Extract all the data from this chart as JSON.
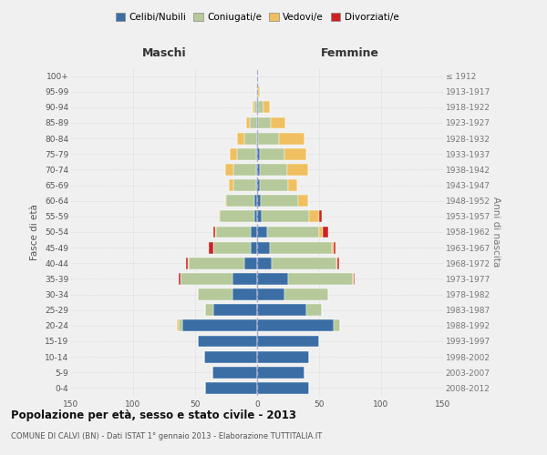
{
  "age_groups": [
    "0-4",
    "5-9",
    "10-14",
    "15-19",
    "20-24",
    "25-29",
    "30-34",
    "35-39",
    "40-44",
    "45-49",
    "50-54",
    "55-59",
    "60-64",
    "65-69",
    "70-74",
    "75-79",
    "80-84",
    "85-89",
    "90-94",
    "95-99",
    "100+"
  ],
  "birth_years": [
    "2008-2012",
    "2003-2007",
    "1998-2002",
    "1993-1997",
    "1988-1992",
    "1983-1987",
    "1978-1982",
    "1973-1977",
    "1968-1972",
    "1963-1967",
    "1958-1962",
    "1953-1957",
    "1948-1952",
    "1943-1947",
    "1938-1942",
    "1933-1937",
    "1928-1932",
    "1923-1927",
    "1918-1922",
    "1913-1917",
    "≤ 1912"
  ],
  "colors": {
    "celibi": "#3a6ea5",
    "coniugati": "#b5c99a",
    "vedovi": "#f0c060",
    "divorziati": "#cc2222"
  },
  "maschi": {
    "celibi": [
      42,
      36,
      43,
      48,
      60,
      35,
      20,
      20,
      10,
      5,
      5,
      2,
      2,
      1,
      1,
      1,
      0,
      0,
      0,
      0,
      0
    ],
    "coniugati": [
      0,
      0,
      0,
      0,
      3,
      7,
      28,
      42,
      45,
      30,
      28,
      28,
      23,
      18,
      18,
      15,
      10,
      6,
      2,
      1,
      0
    ],
    "vedovi": [
      0,
      0,
      0,
      0,
      2,
      0,
      0,
      0,
      1,
      0,
      1,
      1,
      1,
      4,
      7,
      6,
      6,
      3,
      2,
      0,
      0
    ],
    "divorziati": [
      0,
      0,
      0,
      0,
      0,
      0,
      0,
      1,
      1,
      4,
      1,
      0,
      0,
      0,
      0,
      0,
      0,
      0,
      0,
      0,
      0
    ]
  },
  "femmine": {
    "celibi": [
      42,
      38,
      42,
      50,
      62,
      40,
      22,
      25,
      12,
      10,
      8,
      4,
      3,
      2,
      2,
      2,
      1,
      1,
      1,
      0,
      0
    ],
    "coniugati": [
      0,
      0,
      0,
      0,
      5,
      12,
      35,
      52,
      52,
      50,
      42,
      38,
      30,
      23,
      22,
      20,
      17,
      10,
      4,
      1,
      1
    ],
    "vedovi": [
      0,
      0,
      0,
      0,
      0,
      0,
      0,
      1,
      1,
      2,
      3,
      8,
      8,
      7,
      17,
      18,
      20,
      12,
      5,
      1,
      0
    ],
    "divorziati": [
      0,
      0,
      0,
      0,
      0,
      0,
      0,
      1,
      1,
      1,
      4,
      2,
      0,
      0,
      0,
      0,
      0,
      0,
      0,
      0,
      0
    ]
  },
  "title": "Popolazione per età, sesso e stato civile - 2013",
  "subtitle": "COMUNE DI CALVI (BN) - Dati ISTAT 1° gennaio 2013 - Elaborazione TUTTITALIA.IT",
  "xlabel_left": "Maschi",
  "xlabel_right": "Femmine",
  "ylabel_left": "Fasce di età",
  "ylabel_right": "Anni di nascita",
  "xlim": 150,
  "background_color": "#f0f0f0",
  "bar_edge_color": "white",
  "legend_labels": [
    "Celibi/Nubili",
    "Coniugati/e",
    "Vedovi/e",
    "Divorziati/e"
  ]
}
